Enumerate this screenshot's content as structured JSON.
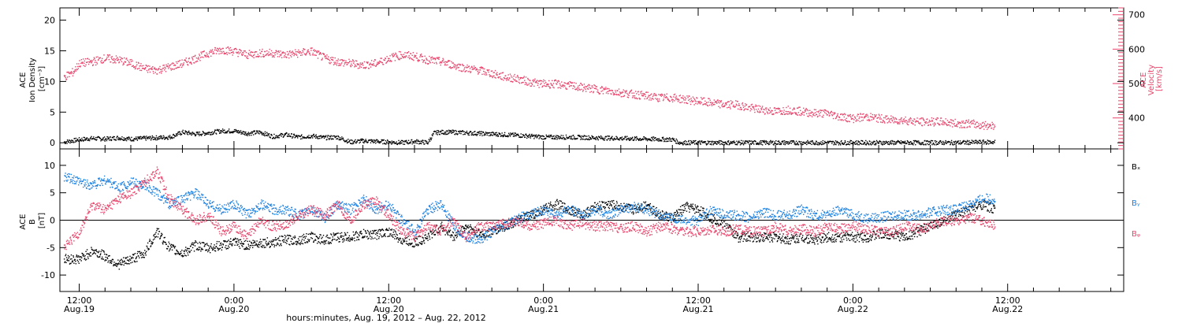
{
  "colors": {
    "axes": "#000000",
    "pink": "#e8446b",
    "blue": "#1a7fe0",
    "black": "#000000"
  },
  "x_axis": {
    "title": "hours:minutes, Aug. 19, 2012 – Aug. 22, 2012",
    "range_hours_from_aug19_0000": [
      10.5,
      93
    ],
    "ticks": [
      {
        "t": 12,
        "time": "12:00",
        "date": "Aug.19"
      },
      {
        "t": 24,
        "time": "0:00",
        "date": "Aug.20"
      },
      {
        "t": 36,
        "time": "12:00",
        "date": "Aug.20"
      },
      {
        "t": 48,
        "time": "0:00",
        "date": "Aug.21"
      },
      {
        "t": 60,
        "time": "12:00",
        "date": "Aug.21"
      },
      {
        "t": 72,
        "time": "0:00",
        "date": "Aug.22"
      },
      {
        "t": 84,
        "time": "12:00",
        "date": "Aug.22"
      }
    ]
  },
  "panels": {
    "top": {
      "left_axis": {
        "title_lines": [
          "ACE",
          "Ion Density",
          "[cm⁻³]"
        ],
        "range": [
          -1,
          22
        ],
        "ticks": [
          0,
          5,
          10,
          15,
          20
        ]
      },
      "right_axis": {
        "title_lines": [
          "ACE",
          "Velocity",
          "[km/s]"
        ],
        "range": [
          310,
          720
        ],
        "ticks": [
          400,
          500,
          600,
          700
        ]
      }
    },
    "bottom": {
      "left_axis": {
        "title_lines": [
          "ACE",
          "B",
          "[nT]"
        ],
        "range": [
          -13,
          13
        ],
        "ticks": [
          -10,
          -5,
          0,
          5,
          10
        ]
      },
      "legend": [
        "Bₓ",
        "Bᵧ",
        "Bᵩ"
      ]
    }
  },
  "chart_data": [
    {
      "type": "scatter",
      "title": "",
      "xlabel": "hours:minutes, Aug. 19, 2012 – Aug. 22, 2012",
      "ylabel": "ACE Ion Density [cm⁻³]",
      "ylim": [
        -1,
        22
      ],
      "y2label": "ACE Velocity [km/s]",
      "y2lim": [
        310,
        720
      ],
      "grid": false,
      "series": [
        {
          "name": "Ion Density",
          "axis": "left",
          "color": "#000000",
          "x": [
            10.8,
            12,
            13,
            14,
            15,
            16,
            17,
            18,
            19,
            20,
            21,
            22,
            23,
            24,
            25,
            26,
            27,
            28,
            29,
            30,
            31,
            32,
            33,
            34,
            35,
            36,
            37,
            38,
            39,
            39.5,
            40,
            41,
            42,
            44,
            46,
            48,
            50,
            52,
            54,
            56,
            58,
            58.5,
            60,
            64,
            68,
            72,
            76,
            80,
            83
          ],
          "y": [
            0.2,
            0.6,
            0.8,
            0.7,
            0.9,
            0.7,
            0.8,
            0.9,
            1.0,
            1.8,
            1.5,
            1.7,
            2.0,
            2.0,
            1.6,
            1.8,
            1.1,
            1.4,
            1.0,
            1.2,
            0.9,
            1.0,
            0.2,
            0.4,
            0.3,
            0.2,
            0.1,
            0.3,
            0.1,
            1.7,
            1.8,
            1.8,
            1.7,
            1.5,
            1.3,
            1.0,
            1.0,
            0.9,
            0.8,
            0.7,
            0.6,
            0.1,
            0.1,
            0.1,
            0.1,
            0.1,
            0.1,
            0.1,
            0.2
          ]
        },
        {
          "name": "Velocity",
          "axis": "right",
          "color": "#e8446b",
          "x": [
            10.8,
            11.5,
            12,
            13,
            14,
            15,
            16,
            17,
            18,
            19,
            20,
            21,
            22,
            23,
            24,
            25,
            26,
            27,
            28,
            29,
            30,
            31,
            32,
            33,
            34,
            35,
            36,
            37,
            38,
            39,
            40,
            41,
            42,
            43,
            44,
            45,
            46,
            47,
            48,
            49,
            50,
            51,
            52,
            53,
            54,
            55,
            56,
            57,
            58,
            59,
            60,
            61,
            62,
            63,
            64,
            65,
            66,
            67,
            68,
            69,
            70,
            71,
            72,
            73,
            74,
            75,
            76,
            77,
            78,
            79,
            80,
            81,
            82,
            83
          ],
          "y": [
            520,
            535,
            560,
            565,
            575,
            570,
            560,
            545,
            540,
            550,
            560,
            575,
            590,
            600,
            595,
            585,
            590,
            590,
            585,
            590,
            595,
            575,
            565,
            560,
            555,
            560,
            575,
            585,
            580,
            570,
            565,
            555,
            545,
            540,
            530,
            520,
            515,
            505,
            500,
            500,
            495,
            490,
            485,
            480,
            475,
            470,
            465,
            460,
            460,
            455,
            450,
            445,
            440,
            440,
            430,
            425,
            420,
            425,
            420,
            415,
            415,
            405,
            400,
            405,
            400,
            395,
            395,
            390,
            390,
            390,
            385,
            385,
            380,
            380
          ]
        }
      ]
    },
    {
      "type": "scatter",
      "title": "",
      "xlabel": "hours:minutes, Aug. 19, 2012 – Aug. 22, 2012",
      "ylabel": "ACE B [nT]",
      "ylim": [
        -13,
        13
      ],
      "grid": false,
      "series": [
        {
          "name": "Bₓ",
          "color": "#000000",
          "x": [
            10.8,
            12,
            13,
            14,
            15,
            16,
            17,
            18,
            19,
            20,
            21,
            22,
            23,
            24,
            25,
            26,
            27,
            28,
            29,
            30,
            31,
            32,
            33,
            34,
            35,
            36,
            37,
            38,
            39,
            40,
            41,
            42,
            43,
            44,
            45,
            46,
            47,
            48,
            49,
            50,
            51,
            52,
            53,
            54,
            55,
            56,
            57,
            58,
            59,
            60,
            61,
            62,
            63,
            64,
            65,
            66,
            67,
            68,
            69,
            70,
            71,
            72,
            73,
            74,
            75,
            76,
            77,
            78,
            79,
            80,
            81,
            82,
            83
          ],
          "y": [
            -7,
            -7,
            -5.5,
            -6.5,
            -8,
            -7,
            -6,
            -2,
            -5,
            -6,
            -4.5,
            -5,
            -4.5,
            -4,
            -4.5,
            -4,
            -4,
            -3.5,
            -3.5,
            -3,
            -3.5,
            -3,
            -3,
            -2.5,
            -2.5,
            -2,
            -3.5,
            -4,
            -3,
            -1,
            -3,
            -1,
            -2.5,
            -2,
            -1,
            0,
            1,
            2,
            3,
            2,
            1,
            2.5,
            3,
            2.5,
            2,
            3,
            1,
            0.5,
            2.5,
            2,
            0.5,
            -0.5,
            -3,
            -3,
            -3,
            -3,
            -3.5,
            -3,
            -3.5,
            -3,
            -3,
            -3,
            -3,
            -2.5,
            -2.5,
            -3,
            -2,
            -1,
            0,
            1,
            2,
            3,
            2
          ]
        },
        {
          "name": "Bᵧ",
          "color": "#1a7fe0",
          "x": [
            10.8,
            12,
            13,
            14,
            15,
            16,
            17,
            18,
            19,
            20,
            21,
            22,
            23,
            24,
            25,
            26,
            27,
            28,
            29,
            30,
            31,
            32,
            33,
            34,
            35,
            36,
            37,
            38,
            39,
            40,
            41,
            42,
            43,
            44,
            45,
            46,
            47,
            48,
            49,
            50,
            51,
            52,
            53,
            54,
            55,
            56,
            57,
            58,
            59,
            60,
            61,
            62,
            63,
            64,
            65,
            66,
            67,
            68,
            69,
            70,
            71,
            72,
            73,
            74,
            75,
            76,
            77,
            78,
            79,
            80,
            81,
            82,
            83
          ],
          "y": [
            8,
            7,
            6.5,
            7.5,
            6,
            7,
            6.5,
            5,
            3,
            4,
            5,
            3,
            2,
            3,
            1,
            3,
            2,
            2,
            1,
            2,
            0.5,
            3,
            2,
            4,
            2,
            3,
            0,
            -2,
            2,
            3,
            -1,
            -3,
            -3.5,
            -2,
            -1,
            0.5,
            1,
            2,
            1,
            2,
            1,
            2,
            1,
            2,
            2.5,
            2,
            1,
            0.5,
            0,
            0,
            2,
            1,
            1,
            0.5,
            1.5,
            1,
            1,
            2,
            1,
            1,
            2,
            1,
            0.5,
            0.5,
            1,
            1,
            1,
            1.5,
            2,
            2,
            3,
            4,
            4
          ]
        },
        {
          "name": "Bᵩ",
          "color": "#e8446b",
          "x": [
            10.8,
            12,
            13,
            14,
            15,
            16,
            17,
            18,
            19,
            20,
            21,
            22,
            23,
            24,
            25,
            26,
            27,
            28,
            29,
            30,
            31,
            32,
            33,
            34,
            35,
            36,
            37,
            38,
            39,
            40,
            41,
            42,
            43,
            44,
            45,
            46,
            47,
            48,
            49,
            50,
            51,
            52,
            53,
            54,
            55,
            56,
            57,
            58,
            59,
            60,
            61,
            62,
            63,
            64,
            65,
            66,
            67,
            68,
            69,
            70,
            71,
            72,
            73,
            74,
            75,
            76,
            77,
            78,
            79,
            80,
            81,
            82,
            83
          ],
          "y": [
            -5,
            -2,
            3,
            2,
            4,
            5,
            7,
            9,
            4,
            2,
            0,
            1,
            -2,
            -1,
            -3,
            0,
            -1,
            -1,
            1,
            2,
            1,
            3,
            0,
            3,
            3.5,
            1,
            -2,
            -3,
            -1,
            -2,
            0,
            -3,
            -1,
            -1,
            -0.5,
            0,
            -1,
            -0.5,
            0,
            -1,
            -0.5,
            -1,
            -1,
            -1.5,
            -1,
            -2,
            -1,
            -1.5,
            -2,
            -2,
            -1.5,
            -2,
            -1.5,
            -2,
            -2,
            -1,
            -2,
            -1.5,
            -2,
            -1,
            -1.5,
            -1,
            -1.5,
            -2,
            -2,
            -1,
            -1.5,
            -1,
            0,
            0,
            0.5,
            0,
            -1
          ]
        }
      ]
    }
  ]
}
